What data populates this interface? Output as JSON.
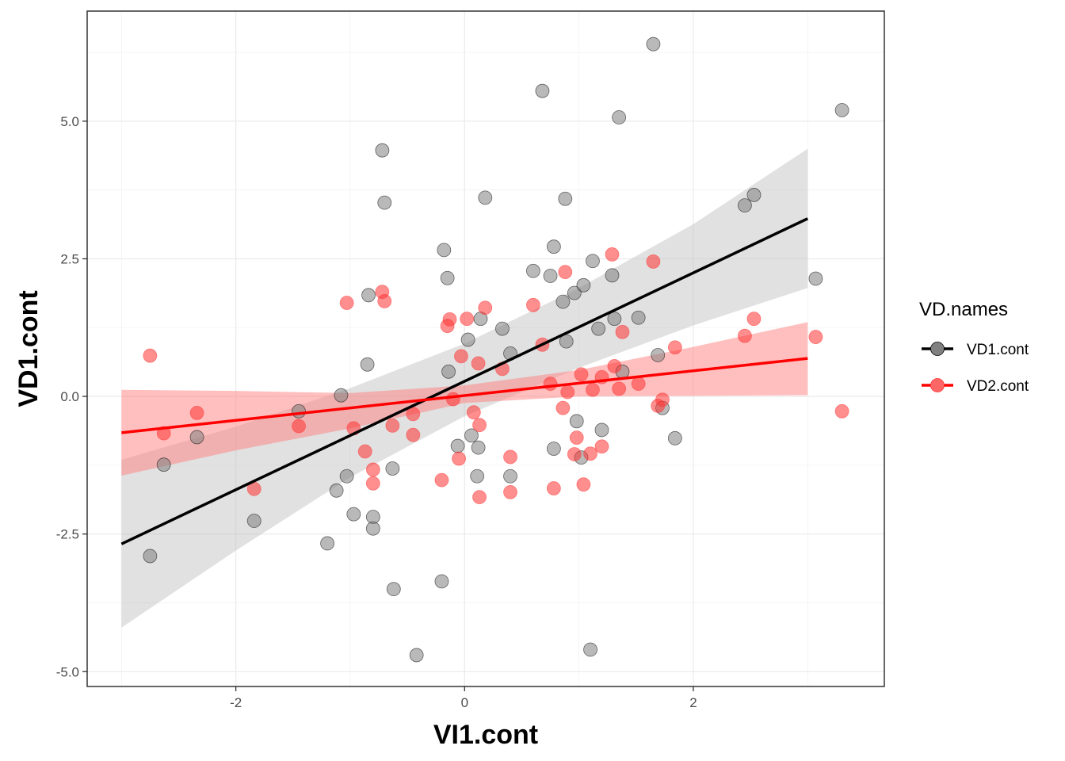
{
  "chart_data": {
    "type": "scatter",
    "xlabel": "VI1.cont",
    "ylabel": "VD1.cont",
    "xlim": [
      -3.3,
      3.67
    ],
    "ylim": [
      -5.27,
      7.0
    ],
    "x_ticks": [
      -2,
      0,
      2
    ],
    "x_tick_labels": [
      "-2",
      "0",
      "2"
    ],
    "y_ticks": [
      -5.0,
      -2.5,
      0.0,
      2.5,
      5.0
    ],
    "y_tick_labels": [
      "-5.0",
      "-2.5",
      "0.0",
      "2.5",
      "5.0"
    ],
    "grid": true,
    "legend": {
      "title": "VD.names",
      "placement": "right"
    },
    "series": [
      {
        "name": "VD1.cont",
        "color": "#000000",
        "point_color": "#808080",
        "band_color": "#bdbdbd",
        "fit": {
          "x": [
            -3.0,
            3.0
          ],
          "y": [
            -2.68,
            3.23
          ]
        },
        "band": {
          "x": [
            -3.0,
            -2.0,
            -1.0,
            0.0,
            1.0,
            2.0,
            3.0
          ],
          "upper": [
            -1.15,
            -0.55,
            0.15,
            0.96,
            1.97,
            3.13,
            4.5
          ],
          "lower": [
            -4.2,
            -2.8,
            -1.47,
            -0.36,
            0.52,
            1.29,
            1.97
          ]
        },
        "points": [
          [
            -2.75,
            -2.9
          ],
          [
            -2.63,
            -1.24
          ],
          [
            -2.34,
            -0.74
          ],
          [
            -1.84,
            -2.26
          ],
          [
            -1.45,
            -0.27
          ],
          [
            -1.2,
            -2.67
          ],
          [
            -1.12,
            -1.71
          ],
          [
            -1.08,
            0.02
          ],
          [
            -1.03,
            -1.45
          ],
          [
            -0.97,
            -2.14
          ],
          [
            -0.85,
            0.58
          ],
          [
            -0.84,
            1.84
          ],
          [
            -0.8,
            -2.19
          ],
          [
            -0.8,
            -2.4
          ],
          [
            -0.72,
            4.47
          ],
          [
            -0.7,
            3.52
          ],
          [
            -0.63,
            -1.31
          ],
          [
            -0.62,
            -3.5
          ],
          [
            -0.42,
            -4.7
          ],
          [
            -0.2,
            -3.36
          ],
          [
            -0.18,
            2.66
          ],
          [
            -0.15,
            2.15
          ],
          [
            -0.14,
            0.45
          ],
          [
            -0.06,
            -0.9
          ],
          [
            0.03,
            1.03
          ],
          [
            0.06,
            -0.71
          ],
          [
            0.11,
            -1.45
          ],
          [
            0.12,
            -0.93
          ],
          [
            0.14,
            1.41
          ],
          [
            0.18,
            3.61
          ],
          [
            0.33,
            1.23
          ],
          [
            0.4,
            -1.45
          ],
          [
            0.4,
            0.78
          ],
          [
            0.6,
            2.28
          ],
          [
            0.68,
            5.55
          ],
          [
            0.75,
            2.19
          ],
          [
            0.78,
            2.72
          ],
          [
            0.78,
            -0.95
          ],
          [
            0.86,
            1.72
          ],
          [
            0.88,
            3.59
          ],
          [
            0.89,
            1.0
          ],
          [
            0.96,
            1.88
          ],
          [
            0.98,
            -0.45
          ],
          [
            1.02,
            -1.11
          ],
          [
            1.04,
            2.02
          ],
          [
            1.1,
            -4.6
          ],
          [
            1.12,
            2.46
          ],
          [
            1.17,
            1.23
          ],
          [
            1.2,
            -0.61
          ],
          [
            1.29,
            2.2
          ],
          [
            1.31,
            1.41
          ],
          [
            1.35,
            5.07
          ],
          [
            1.38,
            0.45
          ],
          [
            1.52,
            1.43
          ],
          [
            1.65,
            6.4
          ],
          [
            1.69,
            0.75
          ],
          [
            1.73,
            -0.21
          ],
          [
            1.84,
            -0.76
          ],
          [
            2.45,
            3.47
          ],
          [
            2.53,
            3.66
          ],
          [
            3.07,
            2.14
          ],
          [
            3.3,
            5.2
          ]
        ]
      },
      {
        "name": "VD2.cont",
        "color": "#ff0000",
        "point_color": "#ff3333",
        "band_color": "#ff8080",
        "fit": {
          "x": [
            -3.0,
            3.0
          ],
          "y": [
            -0.66,
            0.69
          ]
        },
        "band": {
          "x": [
            -3.0,
            -2.0,
            -1.0,
            0.0,
            1.0,
            2.0,
            3.0
          ],
          "upper": [
            0.12,
            0.1,
            0.06,
            0.2,
            0.48,
            0.9,
            1.35
          ],
          "lower": [
            -1.44,
            -0.98,
            -0.58,
            -0.12,
            0.0,
            0.01,
            0.02
          ]
        },
        "points": [
          [
            -2.75,
            0.74
          ],
          [
            -2.63,
            -0.67
          ],
          [
            -2.34,
            -0.3
          ],
          [
            -1.84,
            -1.68
          ],
          [
            -1.45,
            -0.54
          ],
          [
            -1.03,
            1.7
          ],
          [
            -0.97,
            -0.58
          ],
          [
            -0.87,
            -1.0
          ],
          [
            -0.8,
            -1.33
          ],
          [
            -0.8,
            -1.58
          ],
          [
            -0.72,
            1.9
          ],
          [
            -0.7,
            1.73
          ],
          [
            -0.63,
            -0.53
          ],
          [
            -0.45,
            -0.7
          ],
          [
            -0.45,
            -0.32
          ],
          [
            -0.2,
            -1.52
          ],
          [
            -0.15,
            1.28
          ],
          [
            -0.13,
            1.4
          ],
          [
            -0.1,
            -0.05
          ],
          [
            -0.05,
            -1.13
          ],
          [
            -0.03,
            0.73
          ],
          [
            0.02,
            1.41
          ],
          [
            0.08,
            -0.29
          ],
          [
            0.12,
            0.6
          ],
          [
            0.13,
            -0.52
          ],
          [
            0.13,
            -1.83
          ],
          [
            0.18,
            1.61
          ],
          [
            0.33,
            0.5
          ],
          [
            0.4,
            -1.1
          ],
          [
            0.4,
            -1.74
          ],
          [
            0.6,
            1.66
          ],
          [
            0.68,
            0.94
          ],
          [
            0.75,
            0.23
          ],
          [
            0.78,
            -1.67
          ],
          [
            0.86,
            -0.21
          ],
          [
            0.88,
            2.26
          ],
          [
            0.9,
            0.08
          ],
          [
            0.96,
            -1.05
          ],
          [
            0.98,
            -0.75
          ],
          [
            1.02,
            0.4
          ],
          [
            1.04,
            -1.6
          ],
          [
            1.1,
            -1.04
          ],
          [
            1.12,
            0.12
          ],
          [
            1.2,
            0.35
          ],
          [
            1.2,
            -0.91
          ],
          [
            1.29,
            2.58
          ],
          [
            1.31,
            0.55
          ],
          [
            1.35,
            0.14
          ],
          [
            1.38,
            1.17
          ],
          [
            1.52,
            0.23
          ],
          [
            1.65,
            2.45
          ],
          [
            1.69,
            -0.17
          ],
          [
            1.73,
            -0.06
          ],
          [
            1.84,
            0.89
          ],
          [
            2.45,
            1.1
          ],
          [
            2.53,
            1.41
          ],
          [
            3.07,
            1.08
          ],
          [
            3.3,
            -0.27
          ]
        ]
      }
    ]
  }
}
